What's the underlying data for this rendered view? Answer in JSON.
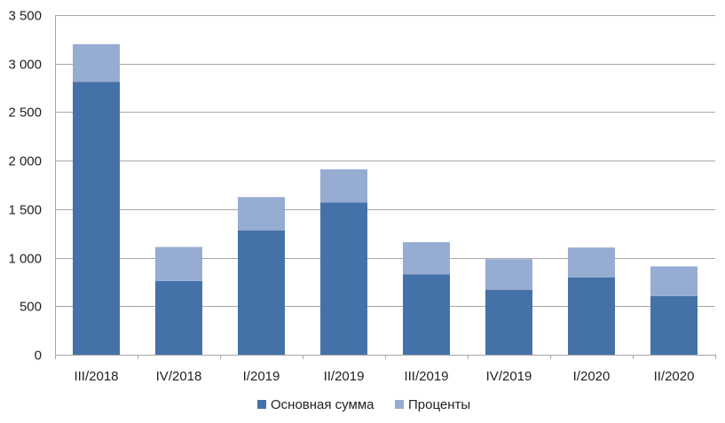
{
  "chart_data": {
    "type": "bar",
    "stacked": true,
    "title": "",
    "xlabel": "",
    "ylabel": "",
    "categories": [
      "III/2018",
      "IV/2018",
      "I/2019",
      "II/2019",
      "III/2019",
      "IV/2019",
      "I/2020",
      "II/2020"
    ],
    "series": [
      {
        "name": "Основная сумма",
        "color": "#4472a8",
        "values": [
          2810,
          760,
          1280,
          1570,
          830,
          670,
          795,
          605
        ]
      },
      {
        "name": "Проценты",
        "color": "#96acd2",
        "values": [
          390,
          350,
          345,
          340,
          330,
          315,
          310,
          305
        ]
      }
    ],
    "ylim": [
      0,
      3500
    ],
    "yticks": [
      0,
      500,
      1000,
      1500,
      2000,
      2500,
      3000,
      3500
    ],
    "ytick_labels": [
      "0",
      "500",
      "1 000",
      "1 500",
      "2 000",
      "2 500",
      "3 000",
      "3 500"
    ],
    "grid": true,
    "legend_position": "bottom-center"
  }
}
